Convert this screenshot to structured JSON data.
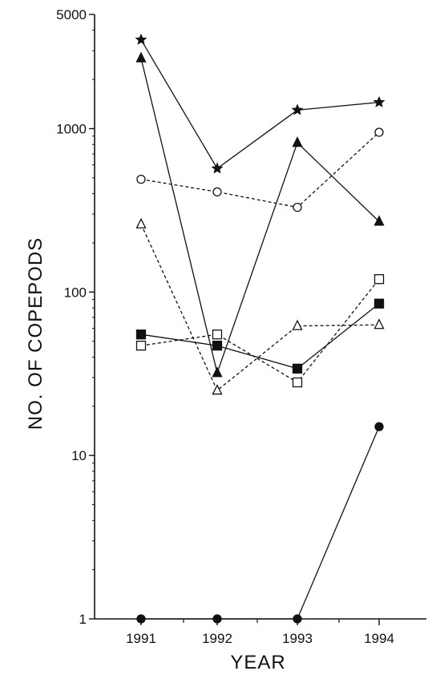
{
  "chart_data": {
    "type": "line",
    "xlabel": "YEAR",
    "ylabel": "NO. OF COPEPODS",
    "x": [
      1991,
      1992,
      1993,
      1994
    ],
    "x_tick_labels": [
      "1991",
      "1992",
      "1993",
      "1994"
    ],
    "y_scale": "log",
    "ylim": [
      1,
      5000
    ],
    "y_ticks": [
      1,
      10,
      100,
      1000,
      5000
    ],
    "y_tick_labels": [
      "1",
      "10",
      "100",
      "1000",
      "5000"
    ],
    "grid": false,
    "legend": "none",
    "series": [
      {
        "marker": "filled-star",
        "line": "solid",
        "values": [
          3500,
          570,
          1300,
          1450
        ]
      },
      {
        "marker": "filled-triangle",
        "line": "solid",
        "values": [
          2700,
          32,
          820,
          270
        ]
      },
      {
        "marker": "open-circle",
        "line": "dashed",
        "values": [
          490,
          410,
          330,
          950
        ]
      },
      {
        "marker": "open-triangle",
        "line": "dashed",
        "values": [
          260,
          25,
          62,
          63
        ]
      },
      {
        "marker": "open-square",
        "line": "dashed",
        "values": [
          47,
          55,
          28,
          120
        ]
      },
      {
        "marker": "filled-square",
        "line": "solid",
        "values": [
          55,
          47,
          34,
          85
        ]
      },
      {
        "marker": "filled-circle",
        "line": "solid",
        "values": [
          1,
          1,
          1,
          15
        ]
      }
    ]
  }
}
